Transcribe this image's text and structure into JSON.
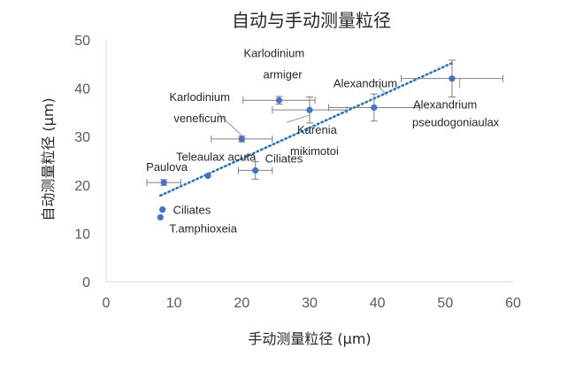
{
  "chart_data": {
    "type": "scatter",
    "title": "自动与手动测量粒径",
    "xlabel": "手动测量粒径 (μm)",
    "ylabel": "自动测量粒径 (μm)",
    "xlim": [
      0,
      60
    ],
    "ylim": [
      0,
      50
    ],
    "xticks": [
      "0",
      "10",
      "20",
      "30",
      "40",
      "50",
      "60"
    ],
    "yticks": [
      "0",
      "10",
      "20",
      "30",
      "40",
      "50"
    ],
    "marker_color": "#4472C4",
    "error_bar_color": "#7F7F7F",
    "trendline": {
      "style": "dotted",
      "color": "#2E75B6",
      "from": [
        8,
        17.8
      ],
      "to": [
        51,
        45.2
      ]
    },
    "points": [
      {
        "x": 8.3,
        "y": 14.9,
        "xerr": 0,
        "yerr": 0,
        "label": "Ciliates"
      },
      {
        "x": 8.0,
        "y": 13.3,
        "xerr": 0,
        "yerr": 0,
        "label": "T.amphioxeia"
      },
      {
        "x": 8.5,
        "y": 20.5,
        "xerr": 2.5,
        "yerr": 0.6,
        "label": "Paulova"
      },
      {
        "x": 15.0,
        "y": 21.9,
        "xerr": 0,
        "yerr": 0,
        "label": "Teleaulax acuta"
      },
      {
        "x": 22.0,
        "y": 23.0,
        "xerr": 2.5,
        "yerr": 1.8,
        "label": "Ciliates"
      },
      {
        "x": 20.0,
        "y": 29.5,
        "xerr": 4.5,
        "yerr": 0.6,
        "label": "Karlodinium veneficum"
      },
      {
        "x": 25.5,
        "y": 37.5,
        "xerr": 5.3,
        "yerr": 0.8,
        "label": "Karlodinium armiger"
      },
      {
        "x": 30.0,
        "y": 35.5,
        "xerr": 5.5,
        "yerr": 2.7,
        "label": "Karenia mikimotoi"
      },
      {
        "x": 39.5,
        "y": 36.0,
        "xerr": 6.7,
        "yerr": 2.8,
        "label": "Alexandrium"
      },
      {
        "x": 51.0,
        "y": 42.0,
        "xerr": 7.5,
        "yerr": 3.8,
        "label": "Alexandrium pseudogoniaulax"
      }
    ],
    "annotations": [
      {
        "text": "Ciliates",
        "point": 0
      },
      {
        "text": "T.amphioxeia",
        "point": 1
      },
      {
        "text": "Paulova",
        "point": 2
      },
      {
        "text": "Teleaulax acuta",
        "point": 3
      },
      {
        "text": "Ciliates",
        "point": 4
      },
      {
        "text": "Karlodinium",
        "point": 5
      },
      {
        "text": "veneficum",
        "point": 5
      },
      {
        "text": "Karlodinium",
        "point": 6
      },
      {
        "text": "armiger",
        "point": 6
      },
      {
        "text": "Karenia",
        "point": 7
      },
      {
        "text": "mikimotoi",
        "point": 7
      },
      {
        "text": "Alexandrium",
        "point": 8
      },
      {
        "text": "Alexandrium",
        "point": 9
      },
      {
        "text": "pseudogoniaulax",
        "point": 9
      }
    ]
  }
}
